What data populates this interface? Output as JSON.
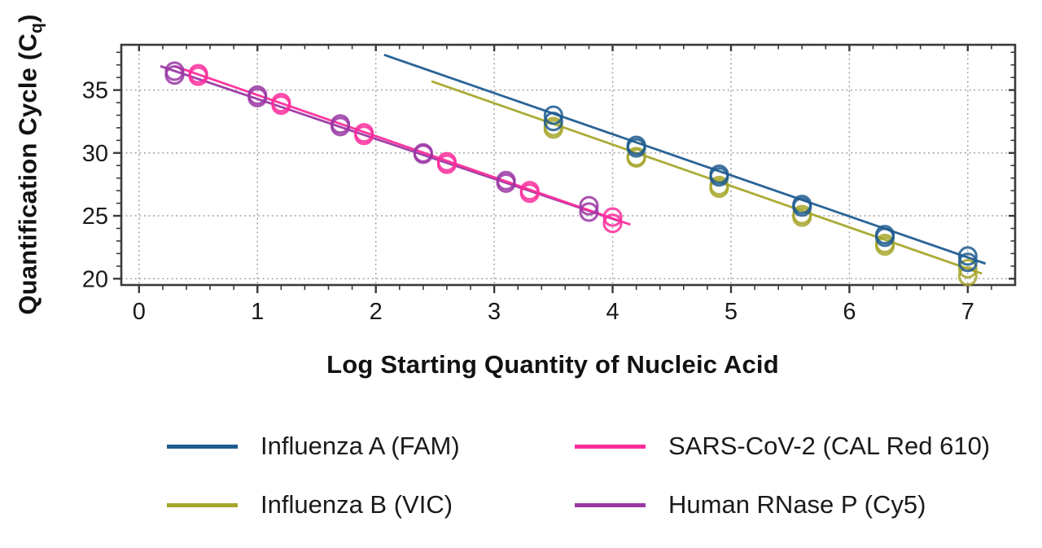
{
  "chart_data": {
    "type": "scatter",
    "title": "",
    "xlabel": "Log Starting Quantity of Nucleic Acid",
    "ylabel": "Quantification Cycle (Cq)",
    "ylabel_parts": {
      "prefix": "Quantification Cycle (C",
      "sub": "q",
      "suffix": ")"
    },
    "xlim": [
      -0.15,
      7.4
    ],
    "ylim": [
      19.5,
      38.6
    ],
    "xticks": [
      0,
      1,
      2,
      3,
      4,
      5,
      6,
      7
    ],
    "yticks": [
      20,
      25,
      30,
      35
    ],
    "x_minor_step": 0.2,
    "y_minor_step": 1,
    "grid": {
      "x": true,
      "y": true,
      "style": "dotted",
      "color": "#9b9b9b"
    },
    "legend_position": "bottom",
    "frame_color": "#3a3a3a",
    "text_color": "#1a1a1a",
    "series": [
      {
        "name": "Influenza A (FAM)",
        "color": "#1f5c8f",
        "line": {
          "x1": 2.07,
          "y1": 37.8,
          "x2": 7.15,
          "y2": 21.2
        },
        "points": [
          [
            3.5,
            33.0
          ],
          [
            3.5,
            32.5
          ],
          [
            4.2,
            30.6
          ],
          [
            4.2,
            30.4
          ],
          [
            4.9,
            28.3
          ],
          [
            4.9,
            28.1
          ],
          [
            5.6,
            25.9
          ],
          [
            5.6,
            25.7
          ],
          [
            6.3,
            23.5
          ],
          [
            6.3,
            23.3
          ],
          [
            7.0,
            21.8
          ],
          [
            7.0,
            21.3
          ]
        ]
      },
      {
        "name": "Influenza B (VIC)",
        "color": "#a6a62c",
        "line": {
          "x1": 2.47,
          "y1": 35.7,
          "x2": 7.12,
          "y2": 20.4
        },
        "points": [
          [
            3.5,
            32.1
          ],
          [
            3.5,
            31.9
          ],
          [
            4.2,
            29.7
          ],
          [
            4.2,
            29.6
          ],
          [
            4.9,
            27.4
          ],
          [
            4.9,
            27.2
          ],
          [
            5.6,
            25.1
          ],
          [
            5.6,
            24.9
          ],
          [
            6.3,
            22.8
          ],
          [
            6.3,
            22.6
          ],
          [
            7.0,
            20.8
          ],
          [
            7.0,
            20.2
          ]
        ]
      },
      {
        "name": "SARS-CoV-2 (CAL Red 610)",
        "color": "#fc2d9b",
        "line": {
          "x1": 0.3,
          "y1": 36.9,
          "x2": 4.15,
          "y2": 24.3
        },
        "points": [
          [
            0.5,
            36.3
          ],
          [
            0.5,
            36.1
          ],
          [
            1.2,
            34.0
          ],
          [
            1.2,
            33.8
          ],
          [
            1.9,
            31.6
          ],
          [
            1.9,
            31.4
          ],
          [
            2.6,
            29.3
          ],
          [
            2.6,
            29.1
          ],
          [
            3.3,
            27.0
          ],
          [
            3.3,
            26.8
          ],
          [
            4.0,
            24.9
          ],
          [
            4.0,
            24.4
          ]
        ]
      },
      {
        "name": "Human RNase P (Cy5)",
        "color": "#9a37a3",
        "line": {
          "x1": 0.18,
          "y1": 36.9,
          "x2": 4.05,
          "y2": 24.6
        },
        "points": [
          [
            0.3,
            36.5
          ],
          [
            0.3,
            36.2
          ],
          [
            1.0,
            34.6
          ],
          [
            1.0,
            34.4
          ],
          [
            1.7,
            32.3
          ],
          [
            1.7,
            32.1
          ],
          [
            2.4,
            30.0
          ],
          [
            2.4,
            29.9
          ],
          [
            3.1,
            27.8
          ],
          [
            3.1,
            27.6
          ],
          [
            3.8,
            25.8
          ],
          [
            3.8,
            25.3
          ]
        ]
      }
    ]
  }
}
